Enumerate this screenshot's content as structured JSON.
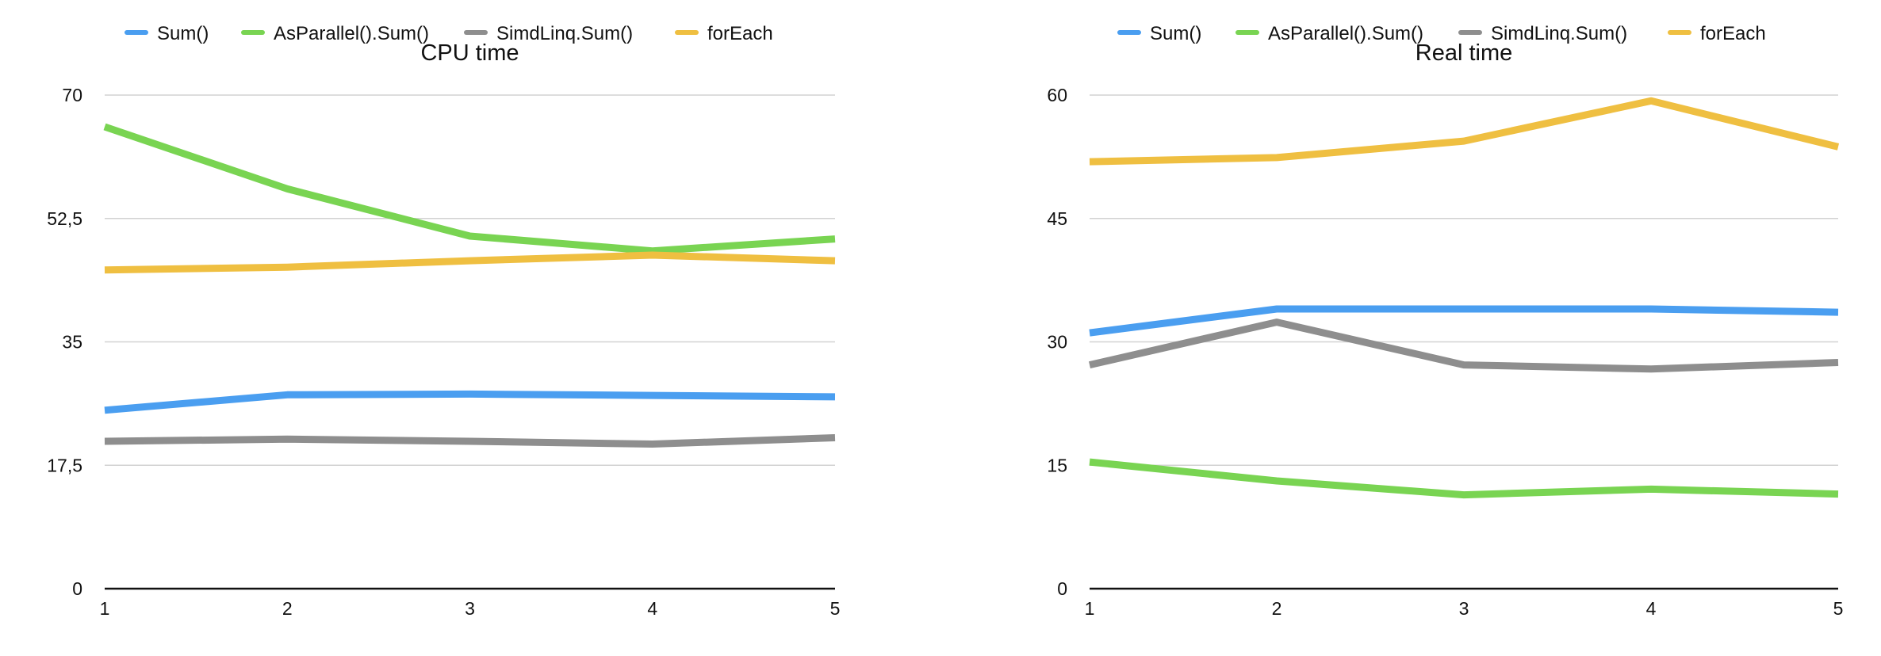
{
  "chart_data": [
    {
      "type": "line",
      "title": "CPU time",
      "x": [
        1,
        2,
        3,
        4,
        5
      ],
      "xticks": [
        "1",
        "2",
        "3",
        "4",
        "5"
      ],
      "ylim": [
        0,
        70
      ],
      "yticks": [
        "0",
        "17,5",
        "35",
        "52,5",
        "70"
      ],
      "grid": true,
      "legend_position": "top",
      "series": [
        {
          "name": "Sum()",
          "color": "#4A9EF0",
          "values": [
            25.3,
            27.5,
            27.6,
            27.4,
            27.2
          ]
        },
        {
          "name": "AsParallel().Sum()",
          "color": "#79D452",
          "values": [
            65.5,
            56.7,
            50.0,
            47.9,
            49.6
          ]
        },
        {
          "name": "SimdLinq.Sum()",
          "color": "#8E8E8E",
          "values": [
            20.9,
            21.2,
            20.9,
            20.5,
            21.4
          ]
        },
        {
          "name": "forEach",
          "color": "#EFBF41",
          "values": [
            45.2,
            45.6,
            46.5,
            47.3,
            46.5
          ]
        }
      ]
    },
    {
      "type": "line",
      "title": "Real time",
      "x": [
        1,
        2,
        3,
        4,
        5
      ],
      "xticks": [
        "1",
        "2",
        "3",
        "4",
        "5"
      ],
      "ylim": [
        0,
        60
      ],
      "yticks": [
        "0",
        "15",
        "30",
        "45",
        "60"
      ],
      "grid": true,
      "legend_position": "top",
      "series": [
        {
          "name": "Sum()",
          "color": "#4A9EF0",
          "values": [
            31.1,
            34.0,
            34.0,
            34.0,
            33.6
          ]
        },
        {
          "name": "AsParallel().Sum()",
          "color": "#79D452",
          "values": [
            15.4,
            13.1,
            11.4,
            12.1,
            11.5
          ]
        },
        {
          "name": "SimdLinq.Sum()",
          "color": "#8E8E8E",
          "values": [
            27.2,
            32.4,
            27.2,
            26.7,
            27.5
          ]
        },
        {
          "name": "forEach",
          "color": "#EFBF41",
          "values": [
            51.9,
            52.4,
            54.4,
            59.3,
            53.7
          ]
        }
      ]
    }
  ]
}
